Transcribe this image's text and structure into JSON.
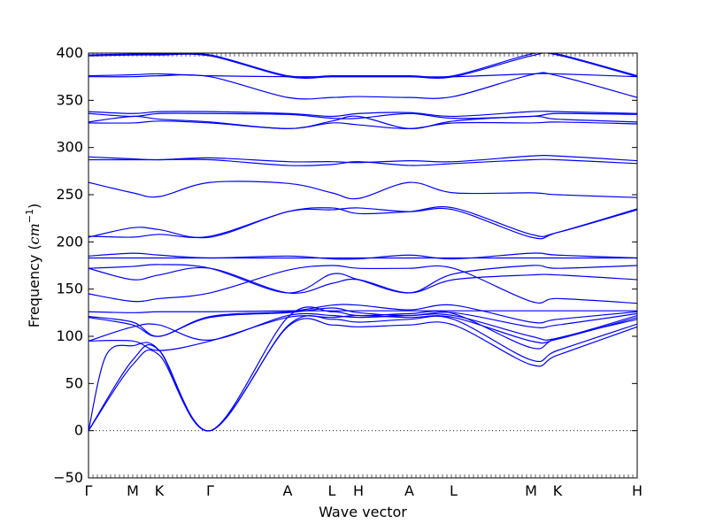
{
  "chart_data": {
    "type": "line",
    "title": "",
    "xlabel": "Wave vector",
    "ylabel_prefix": "Frequency (",
    "ylabel_unit_main": "cm",
    "ylabel_unit_exp": "−1",
    "ylabel_suffix": ")",
    "ylim": [
      -50,
      400
    ],
    "yticks": [
      -50,
      0,
      50,
      100,
      150,
      200,
      250,
      300,
      350,
      400
    ],
    "xlim": [
      0,
      12.4
    ],
    "xticks": [
      {
        "label": "Γ",
        "x": 0
      },
      {
        "label": "M",
        "x": 1.0
      },
      {
        "label": "K",
        "x": 1.6
      },
      {
        "label": "Γ",
        "x": 2.75
      },
      {
        "label": "A",
        "x": 4.5
      },
      {
        "label": "L",
        "x": 5.5
      },
      {
        "label": "H",
        "x": 6.1
      },
      {
        "label": "A",
        "x": 7.25
      },
      {
        "label": "L",
        "x": 8.25
      },
      {
        "label": "M",
        "x": 10.0
      },
      {
        "label": "K",
        "x": 10.6
      },
      {
        "label": "H",
        "x": 12.4
      }
    ],
    "zero_line": true,
    "series_color": "#0000ff",
    "series": [
      {
        "x": [
          0,
          1,
          1.6,
          2.75,
          4.5,
          5.5,
          6.1,
          7.25,
          8.25,
          10,
          10.6,
          12.4
        ],
        "y": [
          0,
          70,
          80,
          0,
          110,
          112,
          110,
          112,
          112,
          70,
          80,
          110
        ]
      },
      {
        "x": [
          0,
          1,
          1.6,
          2.75,
          4.5,
          5.5,
          6.1,
          7.25,
          8.25,
          10,
          10.6,
          12.4
        ],
        "y": [
          0,
          75,
          85,
          0,
          111,
          118,
          115,
          118,
          118,
          75,
          85,
          113
        ]
      },
      {
        "x": [
          0,
          0.4,
          1,
          1.6,
          2.75,
          4.5,
          5.5,
          6.1,
          7.25,
          8.25,
          10,
          10.6,
          12.4
        ],
        "y": [
          0,
          80,
          90,
          85,
          0,
          120,
          126,
          122,
          124,
          124,
          88,
          98,
          118
        ]
      },
      {
        "x": [
          0,
          1,
          1.6,
          2.75,
          4.5,
          5.5,
          6.1,
          7.25,
          8.25,
          10,
          10.6,
          12.4
        ],
        "y": [
          95,
          95,
          85,
          95,
          120,
          120,
          122,
          120,
          120,
          95,
          97,
          120
        ]
      },
      {
        "x": [
          0,
          1,
          1.6,
          2.75,
          4.5,
          5.5,
          6.1,
          7.25,
          8.25,
          10,
          10.6,
          12.4
        ],
        "y": [
          95,
          110,
          112,
          96,
          122,
          122,
          120,
          122,
          122,
          100,
          98,
          122
        ]
      },
      {
        "x": [
          0,
          1,
          1.6,
          2.75,
          4.5,
          5.5,
          6.1,
          7.25,
          8.25,
          10,
          10.6,
          12.4
        ],
        "y": [
          120,
          112,
          100,
          120,
          125,
          130,
          125,
          122,
          125,
          110,
          112,
          124
        ]
      },
      {
        "x": [
          0,
          1,
          1.6,
          2.75,
          4.5,
          5.5,
          6.1,
          7.25,
          8.25,
          10,
          10.6,
          12.4
        ],
        "y": [
          121,
          115,
          100,
          121,
          126,
          133,
          133,
          128,
          133,
          115,
          118,
          126
        ]
      },
      {
        "x": [
          0,
          1,
          1.6,
          2.75,
          4.5,
          5.5,
          6.1,
          7.25,
          8.25,
          10,
          10.6,
          12.4
        ],
        "y": [
          126,
          125,
          126,
          126,
          127,
          127,
          127,
          127,
          127,
          127,
          127,
          127
        ]
      },
      {
        "x": [
          0,
          1,
          1.6,
          2.75,
          4.5,
          5.5,
          6.1,
          7.25,
          8.25,
          10,
          10.6,
          12.4
        ],
        "y": [
          145,
          137,
          140,
          146,
          170,
          175,
          172,
          172,
          172,
          137,
          140,
          135
        ]
      },
      {
        "x": [
          0,
          1,
          1.6,
          2.75,
          4.5,
          5.5,
          6.1,
          7.25,
          8.25,
          10,
          10.6,
          12.4
        ],
        "y": [
          172,
          160,
          165,
          172,
          146,
          156,
          160,
          146,
          160,
          165,
          165,
          160
        ]
      },
      {
        "x": [
          0,
          1,
          1.6,
          2.75,
          4.5,
          5.5,
          6.1,
          7.25,
          8.25,
          10,
          10.6,
          12.4
        ],
        "y": [
          172,
          174,
          176,
          172,
          146,
          166,
          160,
          146,
          166,
          175,
          172,
          175
        ]
      },
      {
        "x": [
          0,
          1,
          1.6,
          2.75,
          4.5,
          5.5,
          6.1,
          7.25,
          8.25,
          10,
          10.6,
          12.4
        ],
        "y": [
          183,
          183,
          183,
          183,
          183,
          183,
          183,
          183,
          183,
          183,
          183,
          183
        ]
      },
      {
        "x": [
          0,
          1,
          1.6,
          2.75,
          4.5,
          5.5,
          6.1,
          7.25,
          8.25,
          10,
          10.6,
          12.4
        ],
        "y": [
          185,
          188,
          186,
          183,
          185,
          182,
          182,
          186,
          182,
          188,
          186,
          183
        ]
      },
      {
        "x": [
          0,
          1,
          1.6,
          2.75,
          4.5,
          5.5,
          6.1,
          7.25,
          8.25,
          10,
          10.6,
          12.4
        ],
        "y": [
          205,
          215,
          213,
          205,
          232,
          234,
          236,
          232,
          234,
          205,
          210,
          235
        ]
      },
      {
        "x": [
          0,
          1,
          1.6,
          2.75,
          4.5,
          5.5,
          6.1,
          7.25,
          8.25,
          10,
          10.6,
          12.4
        ],
        "y": [
          206,
          205,
          208,
          206,
          232,
          236,
          230,
          232,
          236,
          208,
          210,
          234
        ]
      },
      {
        "x": [
          0,
          1,
          1.6,
          2.75,
          4.5,
          5.5,
          6.1,
          7.25,
          8.25,
          10,
          10.6,
          12.4
        ],
        "y": [
          263,
          252,
          248,
          263,
          262,
          252,
          246,
          263,
          252,
          252,
          250,
          247
        ]
      },
      {
        "x": [
          0,
          1,
          1.6,
          2.75,
          4.5,
          5.5,
          6.1,
          7.25,
          8.25,
          10,
          10.6,
          12.4
        ],
        "y": [
          287,
          287,
          287,
          287,
          281,
          282,
          285,
          281,
          283,
          287,
          287,
          283
        ]
      },
      {
        "x": [
          0,
          1,
          1.6,
          2.75,
          4.5,
          5.5,
          6.1,
          7.25,
          8.25,
          10,
          10.6,
          12.4
        ],
        "y": [
          290,
          288,
          287,
          289,
          285,
          285,
          284,
          286,
          285,
          291,
          291,
          286
        ]
      },
      {
        "x": [
          0,
          1,
          1.6,
          2.75,
          4.5,
          5.5,
          6.1,
          7.25,
          8.25,
          10,
          10.6,
          12.4
        ],
        "y": [
          326,
          326,
          328,
          326,
          320,
          326,
          324,
          320,
          326,
          326,
          327,
          325
        ]
      },
      {
        "x": [
          0,
          1,
          1.6,
          2.75,
          4.5,
          5.5,
          6.1,
          7.25,
          8.25,
          10,
          10.6,
          12.4
        ],
        "y": [
          327,
          333,
          330,
          327,
          320,
          328,
          333,
          320,
          328,
          333,
          330,
          327
        ]
      },
      {
        "x": [
          0,
          1,
          1.6,
          2.75,
          4.5,
          5.5,
          6.1,
          7.25,
          8.25,
          10,
          10.6,
          12.4
        ],
        "y": [
          336,
          333,
          336,
          336,
          335,
          331,
          331,
          336,
          331,
          333,
          336,
          335
        ]
      },
      {
        "x": [
          0,
          1,
          1.6,
          2.75,
          4.5,
          5.5,
          6.1,
          7.25,
          8.25,
          10,
          10.6,
          12.4
        ],
        "y": [
          338,
          336,
          338,
          338,
          336,
          333,
          336,
          337,
          333,
          338,
          338,
          336
        ]
      },
      {
        "x": [
          0,
          1,
          1.6,
          2.75,
          4.5,
          5.5,
          6.1,
          7.25,
          8.25,
          10,
          10.6,
          12.4
        ],
        "y": [
          375,
          375,
          376,
          375,
          353,
          353,
          354,
          353,
          354,
          377,
          376,
          353
        ]
      },
      {
        "x": [
          0,
          1,
          1.6,
          2.75,
          4.5,
          5.5,
          6.1,
          7.25,
          8.25,
          10,
          10.6,
          12.4
        ],
        "y": [
          376,
          377,
          378,
          376,
          375,
          375,
          375,
          375,
          375,
          378,
          378,
          375
        ]
      },
      {
        "x": [
          0,
          1,
          1.6,
          2.75,
          4.5,
          5.5,
          6.1,
          7.25,
          8.25,
          10,
          10.6,
          12.4
        ],
        "y": [
          397,
          398,
          398,
          397,
          375,
          375,
          375,
          375,
          375,
          397,
          398,
          375
        ]
      },
      {
        "x": [
          0,
          1,
          1.6,
          2.75,
          4.5,
          5.5,
          6.1,
          7.25,
          8.25,
          10,
          10.6,
          12.4
        ],
        "y": [
          398,
          399,
          399,
          398,
          376,
          376,
          376,
          376,
          376,
          399,
          399,
          376
        ]
      }
    ]
  }
}
